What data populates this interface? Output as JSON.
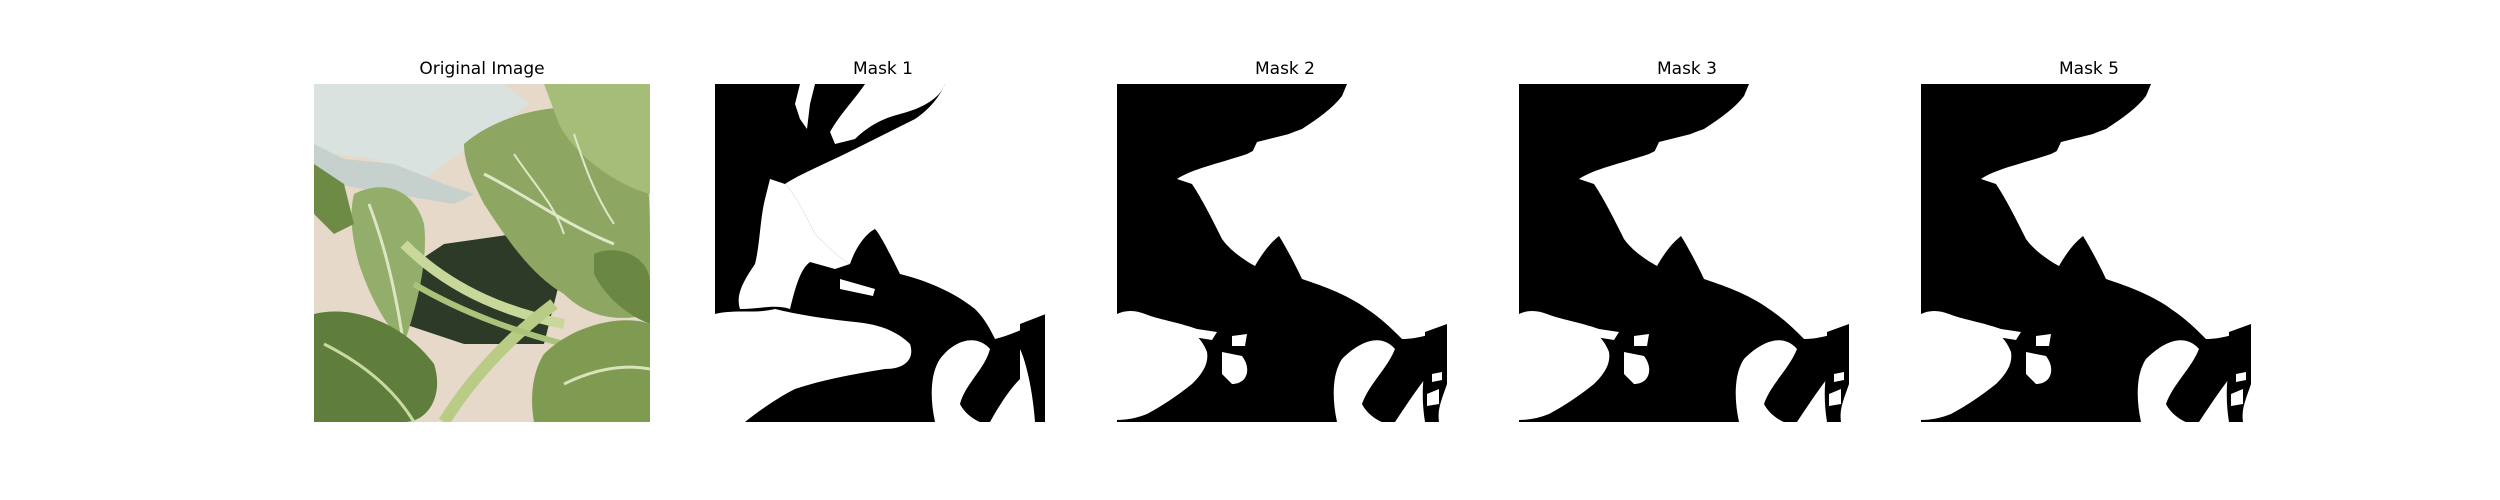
{
  "figure": {
    "panels": [
      {
        "title": "Original Image"
      },
      {
        "title": "Mask 1"
      },
      {
        "title": "Mask 2"
      },
      {
        "title": "Mask 3"
      },
      {
        "title": "Mask 5"
      }
    ]
  },
  "colors": {
    "background": "#ffffff",
    "mask_foreground": "#ffffff",
    "mask_background": "#000000",
    "leaf_light": "#b7c98c",
    "leaf_dark": "#4f6b2f",
    "wall": "#d9e2de"
  }
}
